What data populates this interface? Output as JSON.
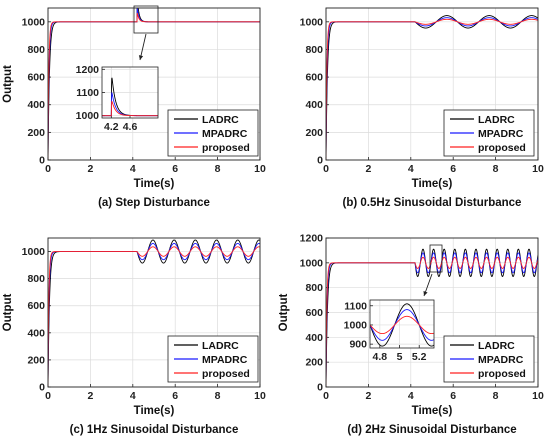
{
  "colors": {
    "LADRC": "#000000",
    "MPADRC": "#1a1aff",
    "proposed": "#ff2020"
  },
  "chart_data": [
    {
      "type": "line",
      "caption": "(a) Step Disturbance",
      "xlabel": "Time(s)",
      "ylabel": "Output",
      "xlim": [
        0,
        10
      ],
      "ylim": [
        0,
        1100
      ],
      "xticks": [
        0,
        2,
        4,
        6,
        8,
        10
      ],
      "yticks": [
        0,
        200,
        400,
        600,
        800,
        1000
      ],
      "grid": true,
      "legend_position": "bottom-right",
      "setpoint": 1000,
      "disturbance": {
        "kind": "step",
        "start": 4.2
      },
      "series": [
        {
          "name": "LADRC",
          "rise_tau": 0.07,
          "peak_deviation": 200
        },
        {
          "name": "MPADRC",
          "rise_tau": 0.05,
          "peak_deviation": 120
        },
        {
          "name": "proposed",
          "rise_tau": 0.04,
          "peak_deviation": 75
        }
      ],
      "inset": {
        "xlim": [
          4,
          5.2
        ],
        "ylim": [
          990,
          1210
        ],
        "xticks": [
          "4.2",
          "4.6"
        ],
        "xtick_values": [
          4.2,
          4.6
        ],
        "yticks": [
          "1000",
          "1100",
          "1200"
        ],
        "ytick_values": [
          1000,
          1100,
          1200
        ]
      }
    },
    {
      "type": "line",
      "caption": "(b) 0.5Hz Sinusoidal Disturbance",
      "xlabel": "Time(s)",
      "ylabel": "",
      "xlim": [
        0,
        10
      ],
      "ylim": [
        0,
        1100
      ],
      "xticks": [
        0,
        2,
        4,
        6,
        8,
        10
      ],
      "yticks": [
        0,
        200,
        400,
        600,
        800,
        1000
      ],
      "grid": true,
      "legend_position": "bottom-right",
      "setpoint": 1000,
      "disturbance": {
        "kind": "sine",
        "frequency_hz": 0.5,
        "start": 4.2
      },
      "series": [
        {
          "name": "LADRC",
          "rise_tau": 0.07,
          "amplitude": 45
        },
        {
          "name": "MPADRC",
          "rise_tau": 0.05,
          "amplitude": 30
        },
        {
          "name": "proposed",
          "rise_tau": 0.04,
          "amplitude": 18
        }
      ]
    },
    {
      "type": "line",
      "caption": "(c) 1Hz Sinusoidal Disturbance",
      "xlabel": "Time(s)",
      "ylabel": "Output",
      "xlim": [
        0,
        10
      ],
      "ylim": [
        0,
        1100
      ],
      "xticks": [
        0,
        2,
        4,
        6,
        8,
        10
      ],
      "yticks": [
        0,
        200,
        400,
        600,
        800,
        1000
      ],
      "grid": true,
      "legend_position": "bottom-right",
      "setpoint": 1000,
      "disturbance": {
        "kind": "sine",
        "frequency_hz": 1,
        "start": 4.2
      },
      "series": [
        {
          "name": "LADRC",
          "rise_tau": 0.07,
          "amplitude": 85
        },
        {
          "name": "MPADRC",
          "rise_tau": 0.05,
          "amplitude": 60
        },
        {
          "name": "proposed",
          "rise_tau": 0.04,
          "amplitude": 35
        }
      ]
    },
    {
      "type": "line",
      "caption": "(d) 2Hz Sinusoidal Disturbance",
      "xlabel": "Time(s)",
      "ylabel": "Output",
      "xlim": [
        0,
        10
      ],
      "ylim": [
        0,
        1200
      ],
      "xticks": [
        0,
        2,
        4,
        6,
        8,
        10
      ],
      "yticks": [
        0,
        200,
        400,
        600,
        800,
        1000,
        1200
      ],
      "grid": true,
      "legend_position": "bottom-right",
      "setpoint": 1000,
      "disturbance": {
        "kind": "sine",
        "frequency_hz": 2,
        "start": 4.2
      },
      "series": [
        {
          "name": "LADRC",
          "rise_tau": 0.07,
          "amplitude": 110
        },
        {
          "name": "MPADRC",
          "rise_tau": 0.05,
          "amplitude": 80
        },
        {
          "name": "proposed",
          "rise_tau": 0.04,
          "amplitude": 45
        }
      ],
      "inset": {
        "xlim": [
          4.7,
          5.35
        ],
        "ylim": [
          880,
          1130
        ],
        "xticks": [
          "4.8",
          "5",
          "5.2"
        ],
        "xtick_values": [
          4.8,
          5.0,
          5.2
        ],
        "yticks": [
          "900",
          "1000",
          "1100"
        ],
        "ytick_values": [
          900,
          1000,
          1100
        ]
      }
    }
  ]
}
